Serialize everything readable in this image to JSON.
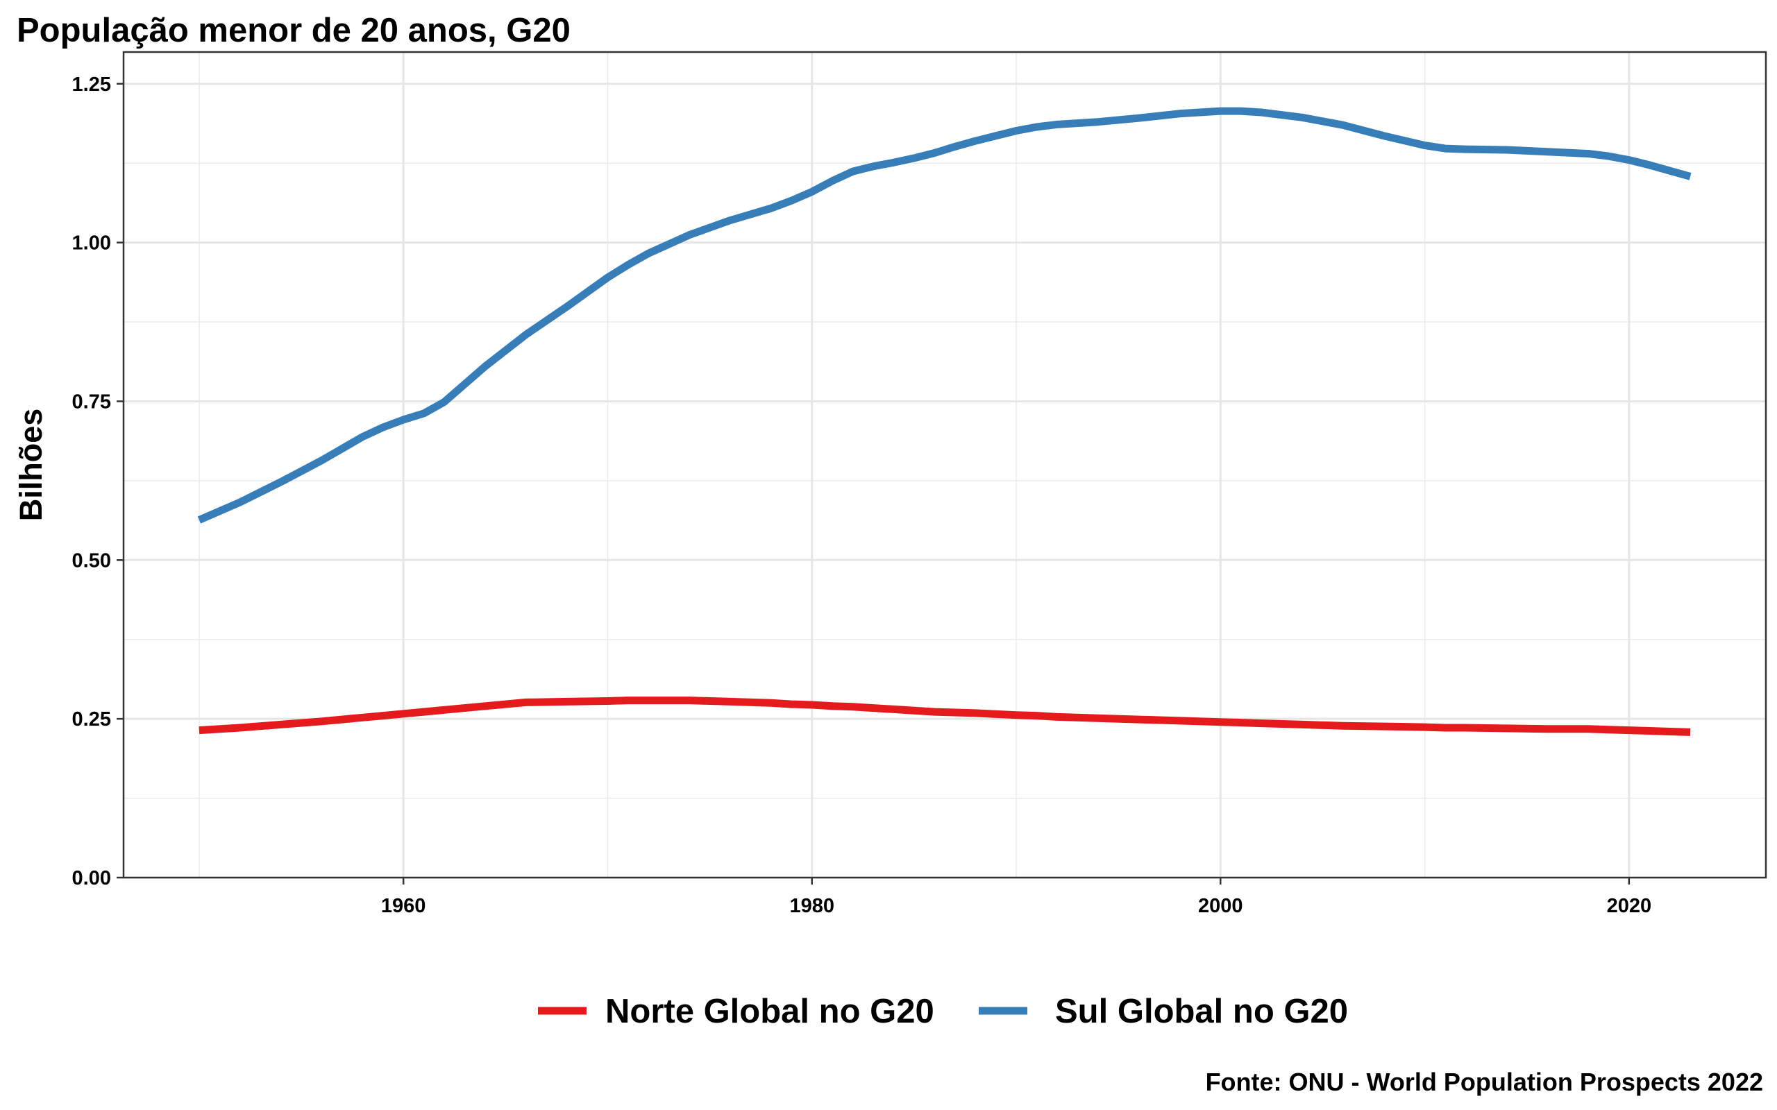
{
  "chart_data": {
    "type": "line",
    "title": "População menor de 20 anos, G20",
    "xlabel": "",
    "ylabel": "Bilhões",
    "caption": "Fonte: ONU - World Population Prospects 2022",
    "xlim": [
      1946.3,
      2026.7
    ],
    "ylim": [
      0,
      1.3
    ],
    "x_ticks": [
      1960,
      1980,
      2000,
      2020
    ],
    "y_ticks": [
      0,
      0.25,
      0.5,
      0.75,
      1.0,
      1.25
    ],
    "x_tick_labels": [
      "1960",
      "1980",
      "2000",
      "2020"
    ],
    "y_tick_labels": [
      "0.00",
      "0.25",
      "0.50",
      "0.75",
      "1.00",
      "1.25"
    ],
    "grid": true,
    "legend_position": "bottom",
    "x": [
      1950,
      1952,
      1954,
      1956,
      1958,
      1959,
      1960,
      1961,
      1962,
      1964,
      1966,
      1968,
      1970,
      1971,
      1972,
      1974,
      1976,
      1978,
      1979,
      1980,
      1981,
      1982,
      1983,
      1984,
      1985,
      1986,
      1987,
      1988,
      1990,
      1991,
      1992,
      1994,
      1996,
      1998,
      2000,
      2001,
      2002,
      2004,
      2006,
      2008,
      2010,
      2011,
      2012,
      2014,
      2016,
      2018,
      2019,
      2020,
      2021,
      2022,
      2023
    ],
    "series": [
      {
        "name": "Norte Global no G20",
        "color": "#E41A1C",
        "values": [
          0.232,
          0.236,
          0.241,
          0.246,
          0.252,
          0.255,
          0.258,
          0.261,
          0.264,
          0.27,
          0.276,
          0.277,
          0.278,
          0.279,
          0.279,
          0.279,
          0.277,
          0.275,
          0.273,
          0.272,
          0.27,
          0.269,
          0.267,
          0.265,
          0.263,
          0.261,
          0.26,
          0.259,
          0.256,
          0.255,
          0.253,
          0.251,
          0.249,
          0.247,
          0.245,
          0.244,
          0.243,
          0.241,
          0.239,
          0.238,
          0.237,
          0.236,
          0.236,
          0.235,
          0.234,
          0.234,
          0.233,
          0.232,
          0.231,
          0.23,
          0.229
        ]
      },
      {
        "name": "Sul Global no G20",
        "color": "#377EB8",
        "values": [
          0.563,
          0.591,
          0.623,
          0.657,
          0.694,
          0.709,
          0.721,
          0.731,
          0.749,
          0.805,
          0.855,
          0.899,
          0.945,
          0.965,
          0.983,
          1.012,
          1.035,
          1.054,
          1.066,
          1.08,
          1.097,
          1.112,
          1.12,
          1.126,
          1.133,
          1.141,
          1.151,
          1.16,
          1.176,
          1.182,
          1.186,
          1.19,
          1.196,
          1.203,
          1.207,
          1.207,
          1.205,
          1.197,
          1.185,
          1.168,
          1.153,
          1.148,
          1.147,
          1.146,
          1.143,
          1.14,
          1.136,
          1.13,
          1.122,
          1.113,
          1.104
        ]
      }
    ]
  }
}
